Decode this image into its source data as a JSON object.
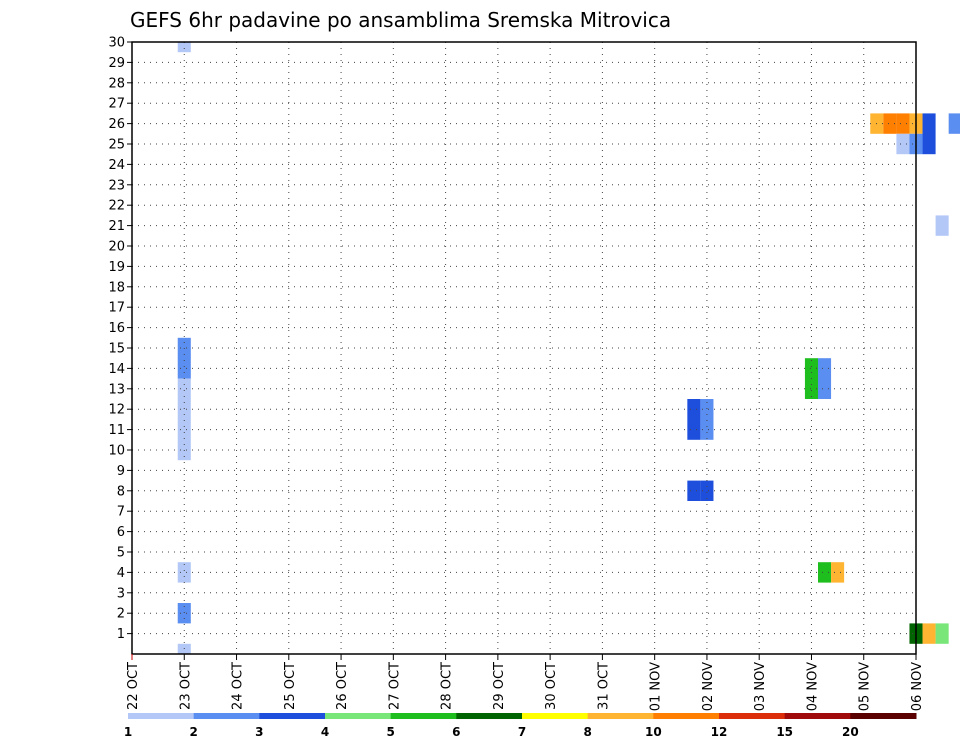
{
  "chart_data": {
    "type": "heatmap",
    "title": "GEFS 6hr padavine po ansamblima Sremska Mitrovica",
    "y_ticks": [
      "1",
      "2",
      "3",
      "4",
      "5",
      "6",
      "7",
      "8",
      "9",
      "10",
      "11",
      "12",
      "13",
      "14",
      "15",
      "16",
      "17",
      "18",
      "19",
      "20",
      "21",
      "22",
      "23",
      "24",
      "25",
      "26",
      "27",
      "28",
      "29",
      "30"
    ],
    "x_ticks": [
      "22 OCT",
      "23 OCT",
      "24 OCT",
      "25 OCT",
      "26 OCT",
      "27 OCT",
      "28 OCT",
      "29 OCT",
      "30 OCT",
      "31 OCT",
      "01 NOV",
      "02 NOV",
      "03 NOV",
      "04 NOV",
      "05 NOV",
      "06 NOV"
    ],
    "x_range_days": [
      0,
      15
    ],
    "y_range": [
      0,
      30
    ],
    "grid": true,
    "colorbar": {
      "labels": [
        "1",
        "2",
        "3",
        "4",
        "5",
        "6",
        "7",
        "8",
        "10",
        "12",
        "15",
        "20"
      ],
      "colors": [
        "#b4c8f8",
        "#5a8ef0",
        "#1e4fdc",
        "#78e678",
        "#1ebe1e",
        "#006400",
        "#ffff00",
        "#ffb432",
        "#ff7f00",
        "#dc2d0a",
        "#a00a0a",
        "#5a0000"
      ]
    },
    "cells": [
      {
        "day": 1.0,
        "y1": 30,
        "y2": 30,
        "level": 1
      },
      {
        "day": 1.0,
        "y1": 14,
        "y2": 15,
        "level": 2
      },
      {
        "day": 1.0,
        "y1": 10,
        "y2": 13,
        "level": 1
      },
      {
        "day": 1.0,
        "y1": 4,
        "y2": 4,
        "level": 1
      },
      {
        "day": 1.0,
        "y1": 2,
        "y2": 2,
        "level": 2
      },
      {
        "day": 1.0,
        "y1": 0,
        "y2": 0,
        "level": 1
      },
      {
        "day": 10.75,
        "y1": 8,
        "y2": 8,
        "level": 3
      },
      {
        "day": 11.0,
        "y1": 8,
        "y2": 8,
        "level": 3
      },
      {
        "day": 10.75,
        "y1": 11,
        "y2": 12,
        "level": 3
      },
      {
        "day": 11.0,
        "y1": 11,
        "y2": 12,
        "level": 2
      },
      {
        "day": 13.0,
        "y1": 13,
        "y2": 14,
        "level": 5
      },
      {
        "day": 13.25,
        "y1": 13,
        "y2": 14,
        "level": 2
      },
      {
        "day": 13.25,
        "y1": 4,
        "y2": 4,
        "level": 5
      },
      {
        "day": 13.5,
        "y1": 4,
        "y2": 4,
        "level": 8
      },
      {
        "day": 14.25,
        "y1": 26,
        "y2": 26,
        "level": 8
      },
      {
        "day": 14.5,
        "y1": 26,
        "y2": 26,
        "level": 10
      },
      {
        "day": 14.75,
        "y1": 26,
        "y2": 26,
        "level": 10
      },
      {
        "day": 15.0,
        "y1": 26,
        "y2": 26,
        "level": 8
      },
      {
        "day": 15.25,
        "y1": 25,
        "y2": 26,
        "level": 3
      },
      {
        "day": 14.75,
        "y1": 25,
        "y2": 25,
        "level": 1
      },
      {
        "day": 15.0,
        "y1": 25,
        "y2": 25,
        "level": 2
      },
      {
        "day": 15.5,
        "y1": 21,
        "y2": 21,
        "level": 1
      },
      {
        "day": 15.75,
        "y1": 26,
        "y2": 26,
        "level": 2
      },
      {
        "day": 15.0,
        "y1": 1,
        "y2": 1,
        "level": 6
      },
      {
        "day": 15.25,
        "y1": 1,
        "y2": 1,
        "level": 8
      },
      {
        "day": 15.5,
        "y1": 1,
        "y2": 1,
        "level": 4
      }
    ]
  }
}
